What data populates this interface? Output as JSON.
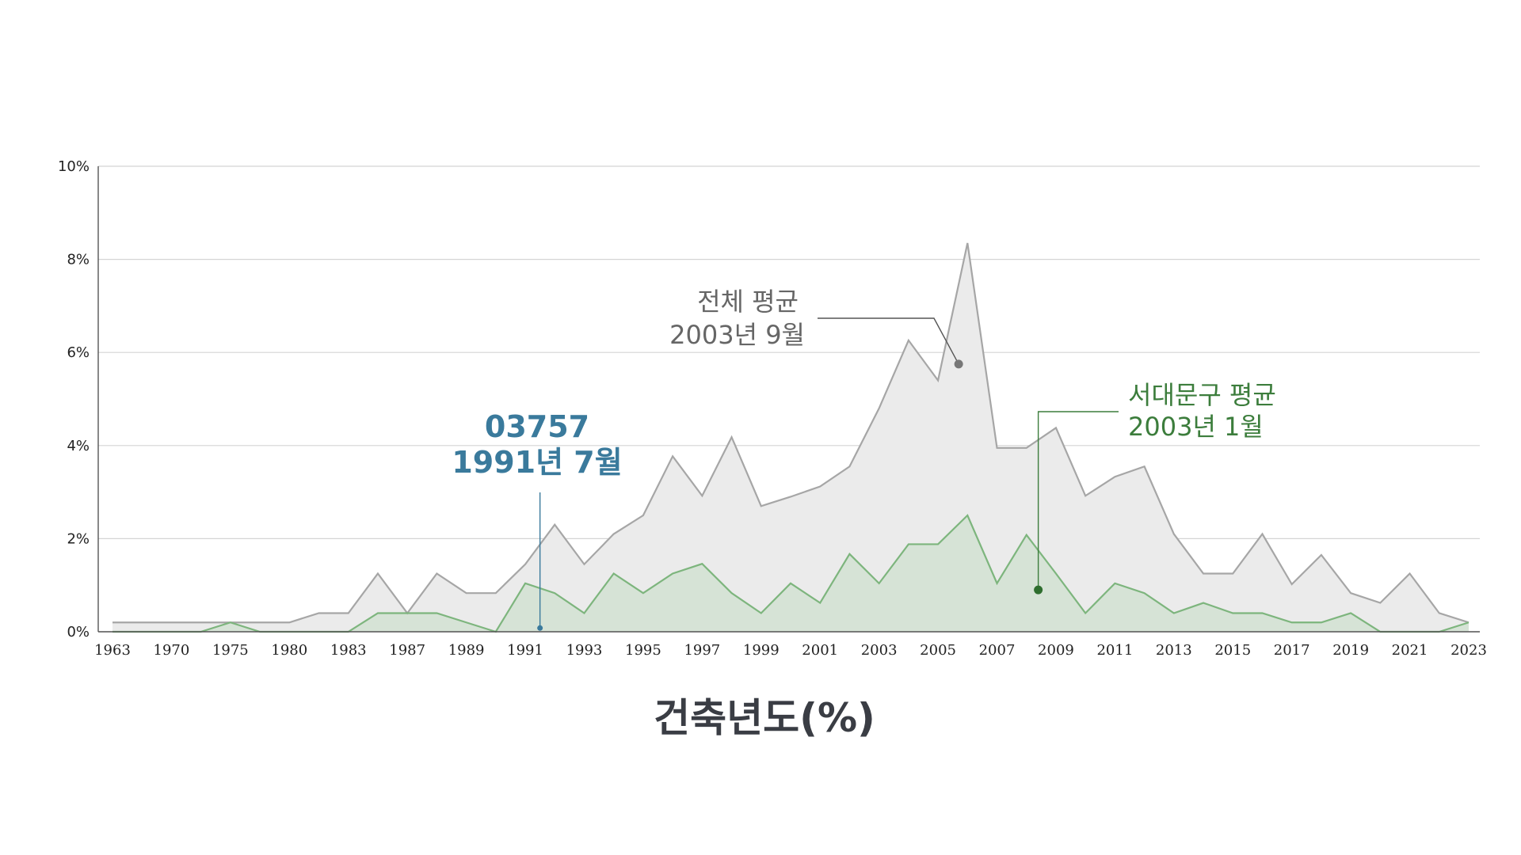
{
  "chart_data": {
    "type": "area",
    "xlabel": "건축년도(%)",
    "ylim": [
      0,
      10
    ],
    "y_ticks": [
      "0%",
      "2%",
      "4%",
      "6%",
      "8%",
      "10%"
    ],
    "x_tick_labels": [
      "1963",
      "1970",
      "1975",
      "1980",
      "1983",
      "1987",
      "1989",
      "1991",
      "1993",
      "1995",
      "1997",
      "1999",
      "2001",
      "2003",
      "2005",
      "2007",
      "2009",
      "2011",
      "2013",
      "2015",
      "2017",
      "2019",
      "2021",
      "2023"
    ],
    "grid": true,
    "series": [
      {
        "key": "total",
        "color": "#a6a6a6",
        "fill": "#ebebeb",
        "values": [
          0.2,
          0.2,
          0.2,
          0.2,
          0.2,
          0.2,
          0.2,
          0.4,
          0.4,
          1.25,
          0.4,
          1.25,
          0.83,
          0.83,
          1.45,
          2.3,
          1.45,
          2.1,
          2.5,
          3.77,
          2.92,
          4.18,
          2.7,
          2.9,
          3.12,
          3.55,
          4.8,
          6.26,
          5.4,
          8.35,
          3.95,
          3.95,
          4.38,
          2.92,
          3.33,
          3.55,
          2.1,
          1.25,
          1.25,
          2.1,
          1.02,
          1.65,
          0.83,
          0.62,
          1.25,
          0.4,
          0.2
        ]
      },
      {
        "key": "district",
        "color": "#7db57d",
        "fill": "#d6e3d6",
        "values": [
          0,
          0,
          0,
          0,
          0.2,
          0,
          0,
          0,
          0,
          0.4,
          0.4,
          0.4,
          0.2,
          0,
          1.04,
          0.83,
          0.4,
          1.25,
          0.83,
          1.25,
          1.46,
          0.83,
          0.4,
          1.04,
          0.62,
          1.67,
          1.04,
          1.88,
          1.88,
          2.5,
          1.04,
          2.08,
          1.25,
          0.4,
          1.04,
          0.83,
          0.4,
          0.62,
          0.4,
          0.4,
          0.2,
          0.2,
          0.4,
          0,
          0,
          0,
          0.2
        ]
      }
    ],
    "annotations": [
      {
        "key": "total_avg",
        "line1": "전체 평균",
        "line2": "2003년 9월",
        "color": "#666666",
        "dot_color": "#777777",
        "x_index": 28.7,
        "y_value": 5.75
      },
      {
        "key": "district_avg",
        "line1": "서대문구 평균",
        "line2": "2003년 1월",
        "color": "#3c7d3c",
        "dot_color": "#2e6e2e",
        "x_index": 31.4,
        "y_value": 0.9
      },
      {
        "key": "this_building",
        "line1": "03757",
        "line2": "1991년 7월",
        "color": "#3a7a9c",
        "dot_color": "#3a7a9c",
        "x_index": 14.5,
        "y_value": 0.08
      }
    ]
  }
}
